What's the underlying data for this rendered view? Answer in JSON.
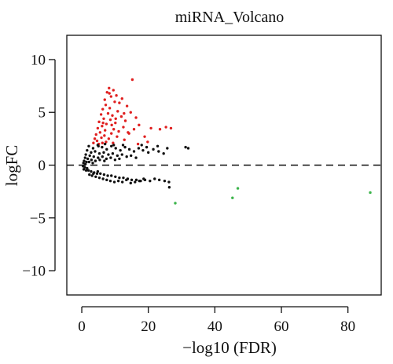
{
  "chart_data": {
    "type": "scatter",
    "title": "miRNA_Volcano",
    "xlabel": "−log10 (FDR)",
    "ylabel": "logFC",
    "xlim": [
      -4.5,
      90
    ],
    "ylim": [
      -12.3,
      12.3
    ],
    "x_ticks": [
      0,
      20,
      40,
      60,
      80
    ],
    "y_ticks": [
      -10,
      -5,
      0,
      5,
      10
    ],
    "x_tick_labels": [
      "0",
      "20",
      "40",
      "60",
      "80"
    ],
    "y_tick_labels": [
      "−10",
      "−5",
      "0",
      "5",
      "10"
    ],
    "reference_line": {
      "y": 0,
      "style": "dashed"
    },
    "grid": false,
    "colors": {
      "up": "#e02020",
      "neutral": "#111111",
      "down": "#3cb44b"
    },
    "series": [
      {
        "color_key": "up",
        "points": [
          [
            15.2,
            8.1
          ],
          [
            8.2,
            7.3
          ],
          [
            9.5,
            7.1
          ],
          [
            7.6,
            6.9
          ],
          [
            10.4,
            6.6
          ],
          [
            8.8,
            6.5
          ],
          [
            12.1,
            6.3
          ],
          [
            6.9,
            6.2
          ],
          [
            9.9,
            6.0
          ],
          [
            11.3,
            5.9
          ],
          [
            7.2,
            5.7
          ],
          [
            13.6,
            5.6
          ],
          [
            8.4,
            5.4
          ],
          [
            6.3,
            5.3
          ],
          [
            10.8,
            5.1
          ],
          [
            14.7,
            5.0
          ],
          [
            7.9,
            4.9
          ],
          [
            5.8,
            4.8
          ],
          [
            9.2,
            4.7
          ],
          [
            11.9,
            4.6
          ],
          [
            16.3,
            4.5
          ],
          [
            6.6,
            4.4
          ],
          [
            8.6,
            4.3
          ],
          [
            13.1,
            4.2
          ],
          [
            5.2,
            4.1
          ],
          [
            10.1,
            4.0
          ],
          [
            7.4,
            3.9
          ],
          [
            17.2,
            3.8
          ],
          [
            6.1,
            3.7
          ],
          [
            12.5,
            3.6
          ],
          [
            4.8,
            3.5
          ],
          [
            9.6,
            3.4
          ],
          [
            15.7,
            3.4
          ],
          [
            20.8,
            3.5
          ],
          [
            25.3,
            3.6
          ],
          [
            26.8,
            3.5
          ],
          [
            23.5,
            3.4
          ],
          [
            7.0,
            3.3
          ],
          [
            11.1,
            3.2
          ],
          [
            5.5,
            3.1
          ],
          [
            8.9,
            3.0
          ],
          [
            14.2,
            3.0
          ],
          [
            4.3,
            2.9
          ],
          [
            6.8,
            2.8
          ],
          [
            10.6,
            2.7
          ],
          [
            18.9,
            2.7
          ],
          [
            5.9,
            2.6
          ],
          [
            3.9,
            2.5
          ],
          [
            8.1,
            2.5
          ],
          [
            12.8,
            2.4
          ],
          [
            4.6,
            2.3
          ],
          [
            7.3,
            2.2
          ],
          [
            19.8,
            2.2
          ],
          [
            3.5,
            2.1
          ],
          [
            6.2,
            2.1
          ],
          [
            9.4,
            2.1
          ],
          [
            5.1,
            2.0
          ],
          [
            16.9,
            2.0
          ],
          [
            8.3,
            6.8
          ],
          [
            12.7,
            4.9
          ],
          [
            9.0,
            3.8
          ],
          [
            13.9,
            3.1
          ],
          [
            6.4,
            4.0
          ],
          [
            10.2,
            4.4
          ]
        ]
      },
      {
        "color_key": "neutral",
        "points": [
          [
            2.1,
            1.8
          ],
          [
            3.4,
            1.6
          ],
          [
            4.8,
            1.9
          ],
          [
            6.1,
            1.7
          ],
          [
            7.5,
            1.5
          ],
          [
            8.9,
            1.8
          ],
          [
            10.2,
            1.6
          ],
          [
            11.6,
            1.4
          ],
          [
            13.0,
            1.7
          ],
          [
            14.3,
            1.5
          ],
          [
            15.7,
            1.3
          ],
          [
            17.1,
            1.6
          ],
          [
            18.4,
            1.4
          ],
          [
            20.0,
            1.2
          ],
          [
            21.5,
            1.5
          ],
          [
            23.1,
            1.3
          ],
          [
            24.6,
            1.1
          ],
          [
            31.2,
            1.7
          ],
          [
            32.0,
            1.6
          ],
          [
            1.6,
            1.4
          ],
          [
            2.8,
            1.2
          ],
          [
            4.0,
            1.3
          ],
          [
            5.3,
            1.1
          ],
          [
            6.6,
            1.2
          ],
          [
            8.0,
            1.0
          ],
          [
            9.3,
            1.1
          ],
          [
            10.7,
            0.9
          ],
          [
            12.1,
            1.0
          ],
          [
            13.5,
            0.8
          ],
          [
            14.8,
            0.9
          ],
          [
            16.3,
            0.7
          ],
          [
            1.2,
            1.0
          ],
          [
            2.4,
            0.9
          ],
          [
            3.6,
            0.8
          ],
          [
            4.9,
            0.7
          ],
          [
            6.2,
            0.8
          ],
          [
            7.4,
            0.6
          ],
          [
            8.7,
            0.7
          ],
          [
            10.0,
            0.5
          ],
          [
            11.3,
            0.6
          ],
          [
            1.0,
            0.7
          ],
          [
            1.8,
            0.6
          ],
          [
            2.9,
            0.5
          ],
          [
            4.1,
            0.4
          ],
          [
            5.4,
            0.5
          ],
          [
            6.8,
            0.4
          ],
          [
            0.7,
            0.4
          ],
          [
            1.4,
            0.3
          ],
          [
            2.2,
            0.3
          ],
          [
            3.3,
            0.2
          ],
          [
            0.5,
            0.2
          ],
          [
            1.1,
            0.1
          ],
          [
            0.4,
            -0.1
          ],
          [
            0.9,
            -0.2
          ],
          [
            1.6,
            -0.3
          ],
          [
            0.6,
            -0.4
          ],
          [
            1.3,
            -0.5
          ],
          [
            2.0,
            -0.5
          ],
          [
            2.8,
            -0.6
          ],
          [
            3.7,
            -0.7
          ],
          [
            4.6,
            -0.8
          ],
          [
            5.6,
            -0.8
          ],
          [
            6.7,
            -0.9
          ],
          [
            7.8,
            -1.0
          ],
          [
            8.9,
            -1.0
          ],
          [
            10.1,
            -1.1
          ],
          [
            11.3,
            -1.2
          ],
          [
            12.5,
            -1.2
          ],
          [
            13.8,
            -1.3
          ],
          [
            15.0,
            -1.4
          ],
          [
            16.4,
            -1.4
          ],
          [
            17.7,
            -1.5
          ],
          [
            19.0,
            -1.4
          ],
          [
            20.5,
            -1.5
          ],
          [
            21.9,
            -1.3
          ],
          [
            23.3,
            -1.4
          ],
          [
            24.9,
            -1.5
          ],
          [
            3.1,
            -1.0
          ],
          [
            4.2,
            -1.1
          ],
          [
            5.3,
            -1.2
          ],
          [
            6.4,
            -1.3
          ],
          [
            7.5,
            -1.4
          ],
          [
            8.6,
            -1.5
          ],
          [
            9.8,
            -1.6
          ],
          [
            11.0,
            -1.5
          ],
          [
            12.2,
            -1.6
          ],
          [
            13.4,
            -1.4
          ],
          [
            14.7,
            -1.7
          ],
          [
            16.0,
            -1.6
          ],
          [
            17.3,
            -1.5
          ],
          [
            18.6,
            -1.3
          ],
          [
            2.3,
            -0.9
          ],
          [
            3.5,
            -0.8
          ],
          [
            4.8,
            -0.6
          ],
          [
            26.2,
            -1.6
          ],
          [
            26.3,
            -2.1
          ],
          [
            18.0,
            1.9
          ],
          [
            22.8,
            1.8
          ],
          [
            9.6,
            1.9
          ],
          [
            7.0,
            2.0
          ],
          [
            5.0,
            1.8
          ],
          [
            12.4,
            1.9
          ],
          [
            19.5,
            1.7
          ],
          [
            25.7,
            1.6
          ]
        ]
      },
      {
        "color_key": "down",
        "points": [
          [
            28.1,
            -3.6
          ],
          [
            45.3,
            -3.1
          ],
          [
            46.9,
            -2.2
          ],
          [
            86.7,
            -2.6
          ]
        ]
      }
    ]
  }
}
